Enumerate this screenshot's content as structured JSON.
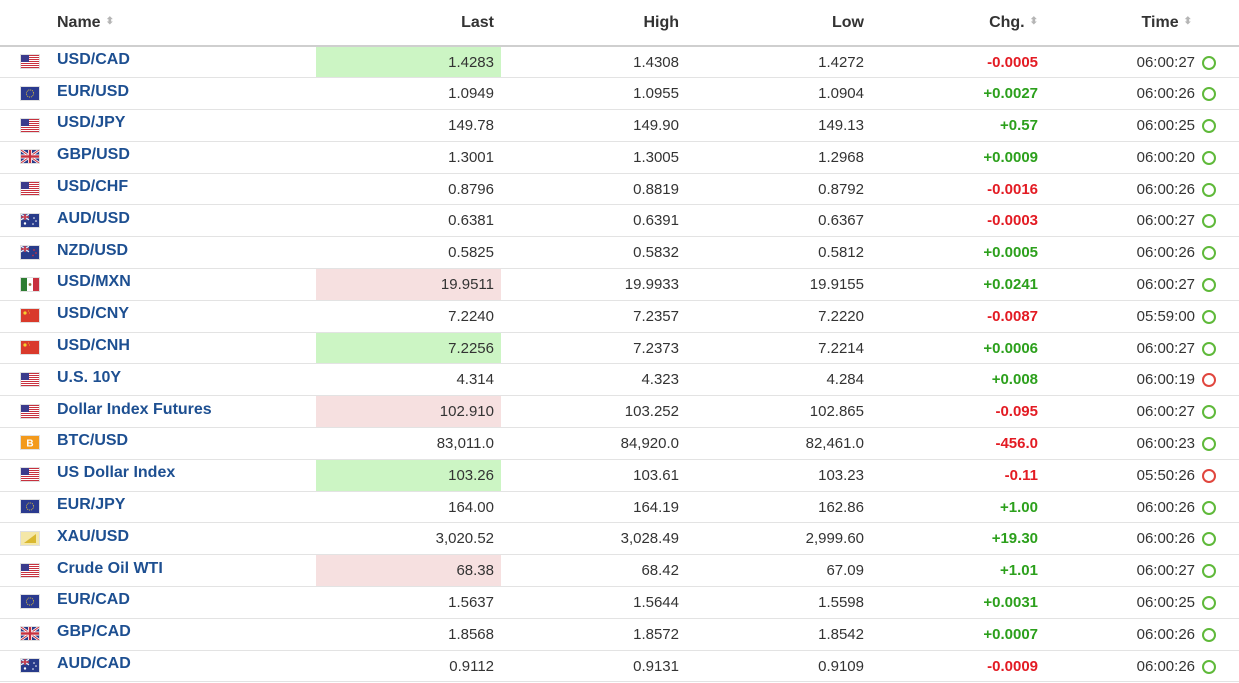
{
  "header": {
    "name": "Name",
    "last": "Last",
    "high": "High",
    "low": "Low",
    "chg": "Chg.",
    "time": "Time",
    "sort_glyph": "⬍"
  },
  "colors": {
    "positive": "#2ca01c",
    "negative": "#e31b23",
    "link": "#1d4f91",
    "flash_up": "#ccf5c4",
    "flash_down": "#f6e0e0"
  },
  "rows": [
    {
      "flag": "us-flag-icon",
      "name": "USD/CAD",
      "last": "1.4283",
      "high": "1.4308",
      "low": "1.4272",
      "chg": "-0.0005",
      "time": "06:00:27",
      "flash": "up",
      "status": "open"
    },
    {
      "flag": "eu-flag-icon",
      "name": "EUR/USD",
      "last": "1.0949",
      "high": "1.0955",
      "low": "1.0904",
      "chg": "+0.0027",
      "time": "06:00:26",
      "flash": "",
      "status": "open"
    },
    {
      "flag": "us-flag-icon",
      "name": "USD/JPY",
      "last": "149.78",
      "high": "149.90",
      "low": "149.13",
      "chg": "+0.57",
      "time": "06:00:25",
      "flash": "",
      "status": "open"
    },
    {
      "flag": "uk-flag-icon",
      "name": "GBP/USD",
      "last": "1.3001",
      "high": "1.3005",
      "low": "1.2968",
      "chg": "+0.0009",
      "time": "06:00:20",
      "flash": "",
      "status": "open"
    },
    {
      "flag": "us-flag-icon",
      "name": "USD/CHF",
      "last": "0.8796",
      "high": "0.8819",
      "low": "0.8792",
      "chg": "-0.0016",
      "time": "06:00:26",
      "flash": "",
      "status": "open"
    },
    {
      "flag": "au-flag-icon",
      "name": "AUD/USD",
      "last": "0.6381",
      "high": "0.6391",
      "low": "0.6367",
      "chg": "-0.0003",
      "time": "06:00:27",
      "flash": "",
      "status": "open"
    },
    {
      "flag": "nz-flag-icon",
      "name": "NZD/USD",
      "last": "0.5825",
      "high": "0.5832",
      "low": "0.5812",
      "chg": "+0.0005",
      "time": "06:00:26",
      "flash": "",
      "status": "open"
    },
    {
      "flag": "mx-flag-icon",
      "name": "USD/MXN",
      "last": "19.9511",
      "high": "19.9933",
      "low": "19.9155",
      "chg": "+0.0241",
      "time": "06:00:27",
      "flash": "down",
      "status": "open"
    },
    {
      "flag": "cn-flag-icon",
      "name": "USD/CNY",
      "last": "7.2240",
      "high": "7.2357",
      "low": "7.2220",
      "chg": "-0.0087",
      "time": "05:59:00",
      "flash": "",
      "status": "open"
    },
    {
      "flag": "cn-flag-icon",
      "name": "USD/CNH",
      "last": "7.2256",
      "high": "7.2373",
      "low": "7.2214",
      "chg": "+0.0006",
      "time": "06:00:27",
      "flash": "up",
      "status": "open"
    },
    {
      "flag": "us-flag-icon",
      "name": "U.S. 10Y",
      "last": "4.314",
      "high": "4.323",
      "low": "4.284",
      "chg": "+0.008",
      "time": "06:00:19",
      "flash": "",
      "status": "closed"
    },
    {
      "flag": "us-flag-icon",
      "name": "Dollar Index Futures",
      "last": "102.910",
      "high": "103.252",
      "low": "102.865",
      "chg": "-0.095",
      "time": "06:00:27",
      "flash": "down",
      "status": "open"
    },
    {
      "flag": "bitcoin-icon",
      "name": "BTC/USD",
      "last": "83,011.0",
      "high": "84,920.0",
      "low": "82,461.0",
      "chg": "-456.0",
      "time": "06:00:23",
      "flash": "",
      "status": "open"
    },
    {
      "flag": "us-flag-icon",
      "name": "US Dollar Index",
      "last": "103.26",
      "high": "103.61",
      "low": "103.23",
      "chg": "-0.11",
      "time": "05:50:26",
      "flash": "up",
      "status": "closed"
    },
    {
      "flag": "eu-flag-icon",
      "name": "EUR/JPY",
      "last": "164.00",
      "high": "164.19",
      "low": "162.86",
      "chg": "+1.00",
      "time": "06:00:26",
      "flash": "",
      "status": "open"
    },
    {
      "flag": "gold-icon",
      "name": "XAU/USD",
      "last": "3,020.52",
      "high": "3,028.49",
      "low": "2,999.60",
      "chg": "+19.30",
      "time": "06:00:26",
      "flash": "",
      "status": "open"
    },
    {
      "flag": "us-flag-icon",
      "name": "Crude Oil WTI",
      "last": "68.38",
      "high": "68.42",
      "low": "67.09",
      "chg": "+1.01",
      "time": "06:00:27",
      "flash": "down",
      "status": "open"
    },
    {
      "flag": "eu-flag-icon",
      "name": "EUR/CAD",
      "last": "1.5637",
      "high": "1.5644",
      "low": "1.5598",
      "chg": "+0.0031",
      "time": "06:00:25",
      "flash": "",
      "status": "open"
    },
    {
      "flag": "uk-flag-icon",
      "name": "GBP/CAD",
      "last": "1.8568",
      "high": "1.8572",
      "low": "1.8542",
      "chg": "+0.0007",
      "time": "06:00:26",
      "flash": "",
      "status": "open"
    },
    {
      "flag": "au-flag-icon",
      "name": "AUD/CAD",
      "last": "0.9112",
      "high": "0.9131",
      "low": "0.9109",
      "chg": "-0.0009",
      "time": "06:00:26",
      "flash": "",
      "status": "open"
    }
  ]
}
